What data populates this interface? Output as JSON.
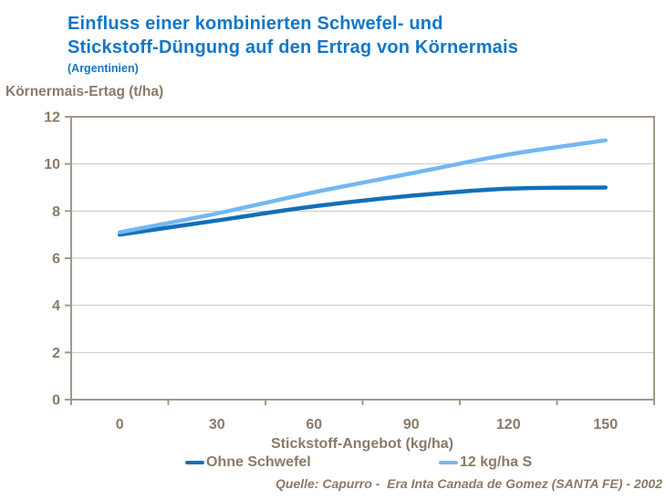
{
  "header": {
    "title_line1": "Einfluss einer kombinierten Schwefel- und",
    "title_line2": "Stickstoff-Düngung auf den Ertrag von Körnermais",
    "subtitle": "(Argentinien)"
  },
  "source_note": "Quelle: Capurro -  Era Inta Canada de Gomez (SANTA FE) - 2002",
  "colors": {
    "title_blue": "#1277C8",
    "axis_text_brown": "#8A7A68",
    "axis_line": "#A59886",
    "gridline": "#CBC6BF",
    "series_dark_blue": "#1170B8",
    "series_light_blue": "#74B7F2"
  },
  "chart_data": {
    "type": "line",
    "title": "Einfluss einer kombinierten Schwefel- und Stickstoff-Düngung auf den Ertrag von Körnermais (Argentinien)",
    "categories": [
      0,
      30,
      60,
      90,
      120,
      150
    ],
    "series": [
      {
        "name": "Ohne Schwefel",
        "color": "#1170B8",
        "values": [
          7.0,
          7.6,
          8.2,
          8.65,
          8.95,
          9.0
        ]
      },
      {
        "name": "12 kg/ha S",
        "color": "#74B7F2",
        "values": [
          7.1,
          7.9,
          8.8,
          9.6,
          10.4,
          11.0
        ]
      }
    ],
    "xlabel": "Stickstoff-Angebot (kg/ha)",
    "ylabel": "Körnermais-Ertag (t/ha)",
    "ylim": [
      0,
      12
    ],
    "ytick_step": 2,
    "grid": true,
    "smooth": true,
    "legend_position": "bottom"
  }
}
